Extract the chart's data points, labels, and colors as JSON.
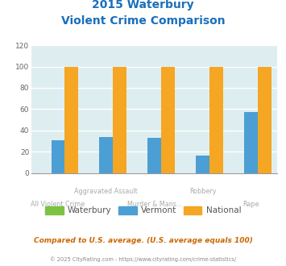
{
  "title_line1": "2015 Waterbury",
  "title_line2": "Violent Crime Comparison",
  "categories": [
    "All Violent Crime",
    "Aggravated Assault",
    "Murder & Mans...",
    "Robbery",
    "Rape"
  ],
  "waterbury": [
    0,
    0,
    0,
    0,
    0
  ],
  "vermont": [
    31,
    34,
    33,
    16,
    57
  ],
  "national": [
    100,
    100,
    100,
    100,
    100
  ],
  "colors": {
    "waterbury": "#7dc242",
    "vermont": "#4b9fd4",
    "national": "#f5a623"
  },
  "ylim": [
    0,
    120
  ],
  "yticks": [
    0,
    20,
    40,
    60,
    80,
    100,
    120
  ],
  "bg_color": "#deeef0",
  "title_color": "#1a6fba",
  "label_color": "#aaaaaa",
  "subtitle_text": "Compared to U.S. average. (U.S. average equals 100)",
  "footer_text": "© 2025 CityRating.com - https://www.cityrating.com/crime-statistics/",
  "subtitle_color": "#cc6600",
  "footer_color": "#888888",
  "bar_width": 0.28
}
